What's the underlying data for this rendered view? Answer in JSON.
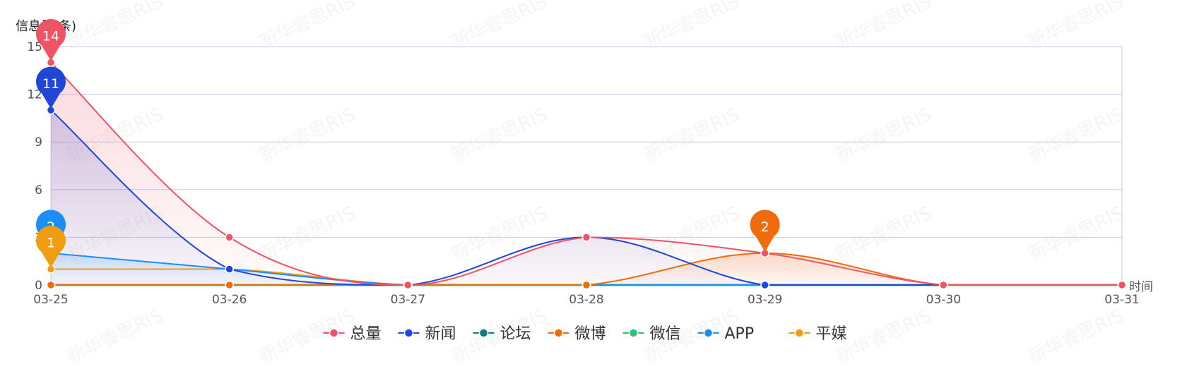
{
  "chart_data": {
    "type": "line",
    "ylabel": "信息量(条)",
    "xlabel": "时间",
    "categories": [
      "03-25",
      "03-26",
      "03-27",
      "03-28",
      "03-29",
      "03-30",
      "03-31"
    ],
    "ylim": [
      0,
      15
    ],
    "yticks": [
      0,
      3,
      6,
      9,
      12,
      15
    ],
    "grid": true,
    "legend": "bottom",
    "watermark": "新华睿思RIS",
    "series": [
      {
        "name": "总量",
        "color": "#ef5466",
        "values": [
          14,
          3,
          0,
          3,
          2,
          0,
          0
        ],
        "pin": {
          "index": 0,
          "label": "14"
        },
        "area": true
      },
      {
        "name": "新闻",
        "color": "#1f46d6",
        "values": [
          11,
          1,
          0,
          3,
          0,
          0,
          0
        ],
        "pin": {
          "index": 0,
          "label": "11"
        },
        "area": true
      },
      {
        "name": "论坛",
        "color": "#0e7c86",
        "values": [
          0,
          0,
          0,
          0,
          0,
          0,
          0
        ]
      },
      {
        "name": "微博",
        "color": "#ee6c0c",
        "values": [
          0,
          0,
          0,
          0,
          2,
          0,
          0
        ],
        "pin": {
          "index": 4,
          "label": "2"
        },
        "area": true
      },
      {
        "name": "微信",
        "color": "#2fbf71",
        "values": [
          0,
          0,
          0,
          0,
          0,
          0,
          0
        ]
      },
      {
        "name": "APP",
        "color": "#1e8ef7",
        "values": [
          2,
          1,
          0,
          0,
          0,
          0,
          0
        ],
        "pin": {
          "index": 0,
          "label": "2"
        },
        "area": true
      },
      {
        "name": "平媒",
        "color": "#f29c11",
        "values": [
          1,
          1,
          0,
          0,
          0,
          0,
          0
        ],
        "pin": {
          "index": 0,
          "label": "1"
        }
      }
    ]
  }
}
